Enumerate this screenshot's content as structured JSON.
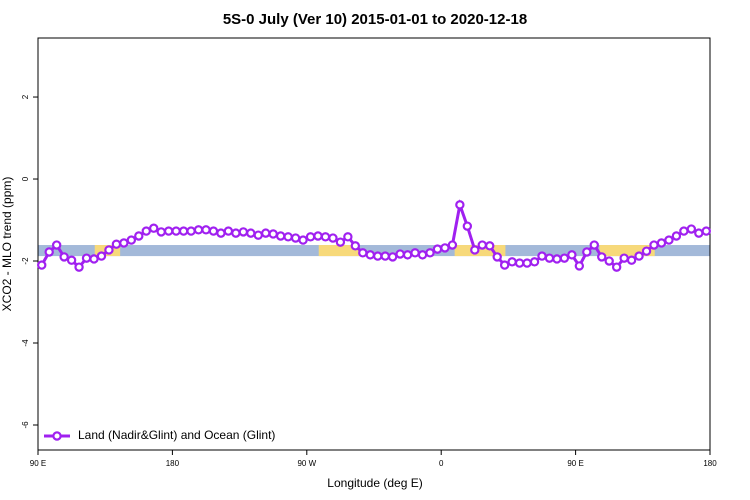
{
  "chart_data": {
    "type": "line",
    "title": "5S-0 July (Ver 10)   2015-01-01 to 2020-12-18",
    "x_label": "Longitude (deg E)",
    "y_label": "XCO2 - MLO trend (ppm)",
    "xlim": [
      90,
      540
    ],
    "ylim": [
      -6.61,
      3.44
    ],
    "xticks": [
      {
        "value": 90,
        "label": "90 E"
      },
      {
        "value": 180,
        "label": "180"
      },
      {
        "value": 270,
        "label": "90 W"
      },
      {
        "value": 360,
        "label": "0"
      },
      {
        "value": 450,
        "label": "90 E"
      },
      {
        "value": 540,
        "label": "180"
      }
    ],
    "yticks": [
      2,
      0,
      -2,
      -4,
      -6
    ],
    "band": {
      "ylim": [
        -1.88,
        -1.61
      ],
      "color": "#a3b9d9",
      "land_color": "#f7d97a",
      "land_spans": [
        [
          128,
          145
        ],
        [
          278,
          305
        ],
        [
          369,
          403
        ],
        [
          466,
          503
        ]
      ]
    },
    "legend": "lower left",
    "x": [
      92.5,
      97.5,
      102.5,
      107.5,
      112.5,
      117.5,
      122.5,
      127.5,
      132.5,
      137.5,
      142.5,
      147.5,
      152.5,
      157.5,
      162.5,
      167.5,
      172.5,
      177.5,
      182.5,
      187.5,
      192.5,
      197.5,
      202.5,
      207.5,
      212.5,
      217.5,
      222.5,
      227.5,
      232.5,
      237.5,
      242.5,
      247.5,
      252.5,
      257.5,
      262.5,
      267.5,
      272.5,
      277.5,
      282.5,
      287.5,
      292.5,
      297.5,
      302.5,
      307.5,
      312.5,
      317.5,
      322.5,
      327.5,
      332.5,
      337.5,
      342.5,
      347.5,
      352.5,
      357.5,
      362.5,
      367.5,
      372.5,
      377.5,
      382.5,
      387.5,
      392.5,
      397.5,
      402.5,
      407.5,
      412.5,
      417.5,
      422.5,
      427.5,
      432.5,
      437.5,
      442.5,
      447.5,
      452.5,
      457.5,
      462.5,
      467.5,
      472.5,
      477.5,
      482.5,
      487.5,
      492.5,
      497.5,
      502.5,
      507.5,
      512.5,
      517.5,
      522.5,
      527.5,
      532.5,
      537.5
    ],
    "series": [
      {
        "name": "Land (Nadir&Glint) and Ocean (Glint)",
        "color": "#a020f0",
        "values": [
          -2.1,
          -1.78,
          -1.61,
          -1.9,
          -1.98,
          -2.15,
          -1.93,
          -1.95,
          -1.88,
          -1.73,
          -1.59,
          -1.56,
          -1.49,
          -1.39,
          -1.27,
          -1.2,
          -1.29,
          -1.27,
          -1.27,
          -1.27,
          -1.27,
          -1.24,
          -1.24,
          -1.27,
          -1.32,
          -1.27,
          -1.32,
          -1.29,
          -1.32,
          -1.37,
          -1.32,
          -1.34,
          -1.39,
          -1.41,
          -1.44,
          -1.49,
          -1.41,
          -1.39,
          -1.41,
          -1.44,
          -1.54,
          -1.41,
          -1.63,
          -1.8,
          -1.85,
          -1.88,
          -1.88,
          -1.9,
          -1.83,
          -1.85,
          -1.8,
          -1.85,
          -1.8,
          -1.71,
          -1.68,
          -1.61,
          -0.63,
          -1.15,
          -1.73,
          -1.61,
          -1.63,
          -1.9,
          -2.1,
          -2.02,
          -2.05,
          -2.05,
          -2.02,
          -1.88,
          -1.93,
          -1.95,
          -1.93,
          -1.85,
          -2.12,
          -1.78,
          -1.61,
          -1.9,
          -2.0,
          -2.15,
          -1.93,
          -1.98,
          -1.88,
          -1.76,
          -1.61,
          -1.56,
          -1.49,
          -1.39,
          -1.27,
          -1.22,
          -1.32,
          -1.27
        ]
      }
    ]
  }
}
